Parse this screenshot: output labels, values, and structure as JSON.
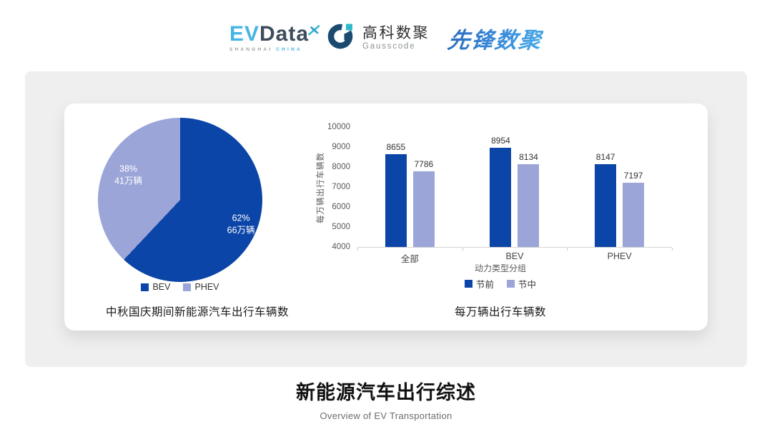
{
  "header": {
    "evdata": {
      "part1": "EV",
      "part2": "Data",
      "subline_left": "SHANGHAI",
      "subline_right": "CHINA"
    },
    "gausscode": {
      "name_cn": "高科数聚",
      "name_en": "Gausscode"
    },
    "pioneer": {
      "name": "先锋数聚"
    }
  },
  "colors": {
    "series_primary": "#0c45a8",
    "series_secondary": "#9ba5d8",
    "panel_bg": "#efeff0",
    "evdata_blue": "#45b5e5",
    "evdata_slate": "#3e4d5e",
    "gausscode_navy": "#1a4a70",
    "gausscode_teal": "#2fb9c9"
  },
  "chart_data": [
    {
      "type": "pie",
      "title": "中秋国庆期间新能源汽车出行车辆数",
      "slices": [
        {
          "label": "BEV",
          "percent": 62,
          "value": "66万辆",
          "color": "#0c45a8"
        },
        {
          "label": "PHEV",
          "percent": 38,
          "value": "41万辆",
          "color": "#9ba5d8"
        }
      ],
      "legend_position": "bottom",
      "start_angle_deg": 0
    },
    {
      "type": "bar",
      "title": "每万辆出行车辆数",
      "categories": [
        "全部",
        "BEV",
        "PHEV"
      ],
      "series": [
        {
          "name": "节前",
          "values": [
            8655,
            8954,
            8147
          ],
          "color": "#0c45a8"
        },
        {
          "name": "节中",
          "values": [
            7786,
            8134,
            7197
          ],
          "color": "#9ba5d8"
        }
      ],
      "xlabel": "动力类型分组",
      "ylabel": "每万辆出行车辆数",
      "ylim": [
        4000,
        10000
      ],
      "ytick_step": 1000,
      "grid": false,
      "legend_position": "bottom"
    }
  ],
  "footer": {
    "title": "新能源汽车出行综述",
    "subtitle": "Overview of EV Transportation"
  }
}
